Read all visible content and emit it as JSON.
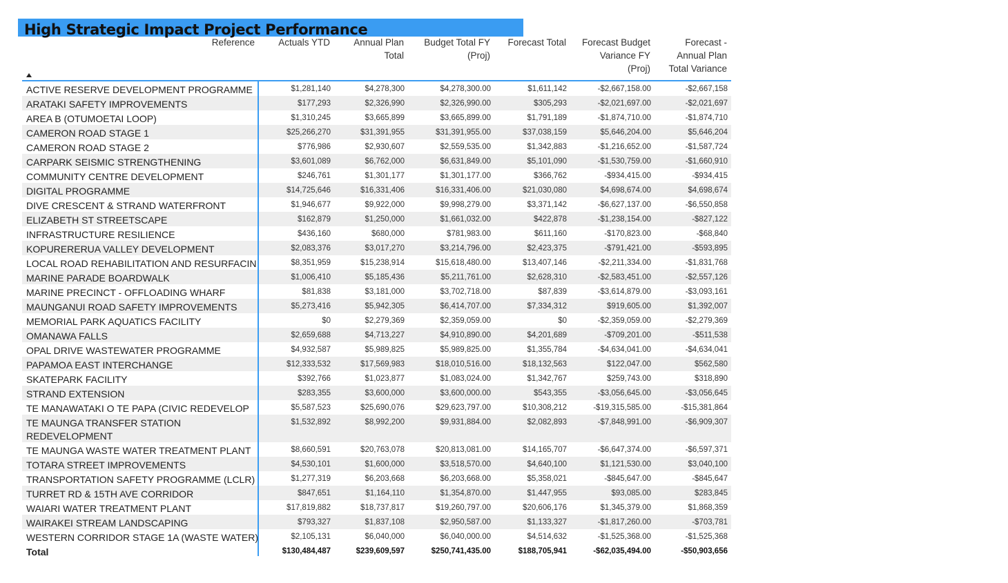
{
  "title": "High Strategic Impact Project Performance",
  "columns": {
    "reference": "Reference",
    "actuals_ytd": "Actuals YTD",
    "annual_plan_1": "Annual Plan",
    "annual_plan_2": "Total",
    "budget_1": "Budget Total FY",
    "budget_2": "(Proj)",
    "forecast_total": "Forecast Total",
    "fbv_1": "Forecast Budget",
    "fbv_2": "Variance FY",
    "fbv_3": "(Proj)",
    "fapv_1": "Forecast -",
    "fapv_2": "Annual Plan",
    "fapv_3": "Total Variance"
  },
  "rows": [
    {
      "name": "ACTIVE RESERVE DEVELOPMENT PROGRAMME",
      "actuals": "$1,281,140",
      "annual": "$4,278,300",
      "budget": "$4,278,300.00",
      "forecast": "$1,611,142",
      "fbv": "-$2,667,158.00",
      "fapv": "-$2,667,158"
    },
    {
      "name": "ARATAKI SAFETY IMPROVEMENTS",
      "actuals": "$177,293",
      "annual": "$2,326,990",
      "budget": "$2,326,990.00",
      "forecast": "$305,293",
      "fbv": "-$2,021,697.00",
      "fapv": "-$2,021,697"
    },
    {
      "name": "AREA B (OTUMOETAI LOOP)",
      "actuals": "$1,310,245",
      "annual": "$3,665,899",
      "budget": "$3,665,899.00",
      "forecast": "$1,791,189",
      "fbv": "-$1,874,710.00",
      "fapv": "-$1,874,710"
    },
    {
      "name": "CAMERON ROAD STAGE 1",
      "actuals": "$25,266,270",
      "annual": "$31,391,955",
      "budget": "$31,391,955.00",
      "forecast": "$37,038,159",
      "fbv": "$5,646,204.00",
      "fapv": "$5,646,204"
    },
    {
      "name": "CAMERON ROAD STAGE 2",
      "actuals": "$776,986",
      "annual": "$2,930,607",
      "budget": "$2,559,535.00",
      "forecast": "$1,342,883",
      "fbv": "-$1,216,652.00",
      "fapv": "-$1,587,724"
    },
    {
      "name": "CARPARK SEISMIC STRENGTHENING",
      "actuals": "$3,601,089",
      "annual": "$6,762,000",
      "budget": "$6,631,849.00",
      "forecast": "$5,101,090",
      "fbv": "-$1,530,759.00",
      "fapv": "-$1,660,910"
    },
    {
      "name": "COMMUNITY CENTRE DEVELOPMENT",
      "actuals": "$246,761",
      "annual": "$1,301,177",
      "budget": "$1,301,177.00",
      "forecast": "$366,762",
      "fbv": "-$934,415.00",
      "fapv": "-$934,415"
    },
    {
      "name": "DIGITAL PROGRAMME",
      "actuals": "$14,725,646",
      "annual": "$16,331,406",
      "budget": "$16,331,406.00",
      "forecast": "$21,030,080",
      "fbv": "$4,698,674.00",
      "fapv": "$4,698,674"
    },
    {
      "name": "DIVE CRESCENT & STRAND WATERFRONT",
      "actuals": "$1,946,677",
      "annual": "$9,922,000",
      "budget": "$9,998,279.00",
      "forecast": "$3,371,142",
      "fbv": "-$6,627,137.00",
      "fapv": "-$6,550,858"
    },
    {
      "name": "ELIZABETH ST STREETSCAPE",
      "actuals": "$162,879",
      "annual": "$1,250,000",
      "budget": "$1,661,032.00",
      "forecast": "$422,878",
      "fbv": "-$1,238,154.00",
      "fapv": "-$827,122"
    },
    {
      "name": "INFRASTRUCTURE RESILIENCE",
      "actuals": "$436,160",
      "annual": "$680,000",
      "budget": "$781,983.00",
      "forecast": "$611,160",
      "fbv": "-$170,823.00",
      "fapv": "-$68,840"
    },
    {
      "name": "KOPURERERUA VALLEY DEVELOPMENT",
      "actuals": "$2,083,376",
      "annual": "$3,017,270",
      "budget": "$3,214,796.00",
      "forecast": "$2,423,375",
      "fbv": "-$791,421.00",
      "fapv": "-$593,895"
    },
    {
      "name": "LOCAL ROAD REHABILITATION AND RESURFACIN",
      "actuals": "$8,351,959",
      "annual": "$15,238,914",
      "budget": "$15,618,480.00",
      "forecast": "$13,407,146",
      "fbv": "-$2,211,334.00",
      "fapv": "-$1,831,768"
    },
    {
      "name": "MARINE PARADE BOARDWALK",
      "actuals": "$1,006,410",
      "annual": "$5,185,436",
      "budget": "$5,211,761.00",
      "forecast": "$2,628,310",
      "fbv": "-$2,583,451.00",
      "fapv": "-$2,557,126"
    },
    {
      "name": "MARINE PRECINCT - OFFLOADING WHARF",
      "actuals": "$81,838",
      "annual": "$3,181,000",
      "budget": "$3,702,718.00",
      "forecast": "$87,839",
      "fbv": "-$3,614,879.00",
      "fapv": "-$3,093,161"
    },
    {
      "name": "MAUNGANUI ROAD SAFETY IMPROVEMENTS",
      "actuals": "$5,273,416",
      "annual": "$5,942,305",
      "budget": "$6,414,707.00",
      "forecast": "$7,334,312",
      "fbv": "$919,605.00",
      "fapv": "$1,392,007"
    },
    {
      "name": "MEMORIAL PARK AQUATICS FACILITY",
      "actuals": "$0",
      "annual": "$2,279,369",
      "budget": "$2,359,059.00",
      "forecast": "$0",
      "fbv": "-$2,359,059.00",
      "fapv": "-$2,279,369"
    },
    {
      "name": "OMANAWA FALLS",
      "actuals": "$2,659,688",
      "annual": "$4,713,227",
      "budget": "$4,910,890.00",
      "forecast": "$4,201,689",
      "fbv": "-$709,201.00",
      "fapv": "-$511,538"
    },
    {
      "name": "OPAL DRIVE WASTEWATER PROGRAMME",
      "actuals": "$4,932,587",
      "annual": "$5,989,825",
      "budget": "$5,989,825.00",
      "forecast": "$1,355,784",
      "fbv": "-$4,634,041.00",
      "fapv": "-$4,634,041"
    },
    {
      "name": "PAPAMOA EAST INTERCHANGE",
      "actuals": "$12,333,532",
      "annual": "$17,569,983",
      "budget": "$18,010,516.00",
      "forecast": "$18,132,563",
      "fbv": "$122,047.00",
      "fapv": "$562,580"
    },
    {
      "name": "SKATEPARK FACILITY",
      "actuals": "$392,766",
      "annual": "$1,023,877",
      "budget": "$1,083,024.00",
      "forecast": "$1,342,767",
      "fbv": "$259,743.00",
      "fapv": "$318,890"
    },
    {
      "name": "STRAND EXTENSION",
      "actuals": "$283,355",
      "annual": "$3,600,000",
      "budget": "$3,600,000.00",
      "forecast": "$543,355",
      "fbv": "-$3,056,645.00",
      "fapv": "-$3,056,645"
    },
    {
      "name": "TE MANAWATAKI O TE PAPA (CIVIC REDEVELOP",
      "actuals": "$5,587,523",
      "annual": "$25,690,076",
      "budget": "$29,623,797.00",
      "forecast": "$10,308,212",
      "fbv": "-$19,315,585.00",
      "fapv": "-$15,381,864"
    },
    {
      "name": "TE MAUNGA TRANSFER STATION REDEVELOPMENT",
      "actuals": "$1,532,892",
      "annual": "$8,992,200",
      "budget": "$9,931,884.00",
      "forecast": "$2,082,893",
      "fbv": "-$7,848,991.00",
      "fapv": "-$6,909,307",
      "tall": true
    },
    {
      "name": "TE MAUNGA WASTE WATER TREATMENT PLANT",
      "actuals": "$8,660,591",
      "annual": "$20,763,078",
      "budget": "$20,813,081.00",
      "forecast": "$14,165,707",
      "fbv": "-$6,647,374.00",
      "fapv": "-$6,597,371"
    },
    {
      "name": "TOTARA STREET IMPROVEMENTS",
      "actuals": "$4,530,101",
      "annual": "$1,600,000",
      "budget": "$3,518,570.00",
      "forecast": "$4,640,100",
      "fbv": "$1,121,530.00",
      "fapv": "$3,040,100"
    },
    {
      "name": "TRANSPORTATION SAFETY PROGRAMME (LCLR)",
      "actuals": "$1,277,319",
      "annual": "$6,203,668",
      "budget": "$6,203,668.00",
      "forecast": "$5,358,021",
      "fbv": "-$845,647.00",
      "fapv": "-$845,647"
    },
    {
      "name": "TURRET RD & 15TH AVE CORRIDOR",
      "actuals": "$847,651",
      "annual": "$1,164,110",
      "budget": "$1,354,870.00",
      "forecast": "$1,447,955",
      "fbv": "$93,085.00",
      "fapv": "$283,845"
    },
    {
      "name": "WAIARI WATER TREATMENT PLANT",
      "actuals": "$17,819,882",
      "annual": "$18,737,817",
      "budget": "$19,260,797.00",
      "forecast": "$20,606,176",
      "fbv": "$1,345,379.00",
      "fapv": "$1,868,359"
    },
    {
      "name": "WAIRAKEI STREAM LANDSCAPING",
      "actuals": "$793,327",
      "annual": "$1,837,108",
      "budget": "$2,950,587.00",
      "forecast": "$1,133,327",
      "fbv": "-$1,817,260.00",
      "fapv": "-$703,781"
    },
    {
      "name": "WESTERN CORRIDOR STAGE 1A (WASTE WATER)",
      "actuals": "$2,105,131",
      "annual": "$6,040,000",
      "budget": "$6,040,000.00",
      "forecast": "$4,514,632",
      "fbv": "-$1,525,368.00",
      "fapv": "-$1,525,368"
    }
  ],
  "total": {
    "name": "Total",
    "actuals": "$130,484,487",
    "annual": "$239,609,597",
    "budget": "$250,741,435.00",
    "forecast": "$188,705,941",
    "fbv": "-$62,035,494.00",
    "fapv": "-$50,903,656"
  },
  "accent_color": "#3a9cf2",
  "icons": {
    "sort": "sort-ascending-icon"
  }
}
